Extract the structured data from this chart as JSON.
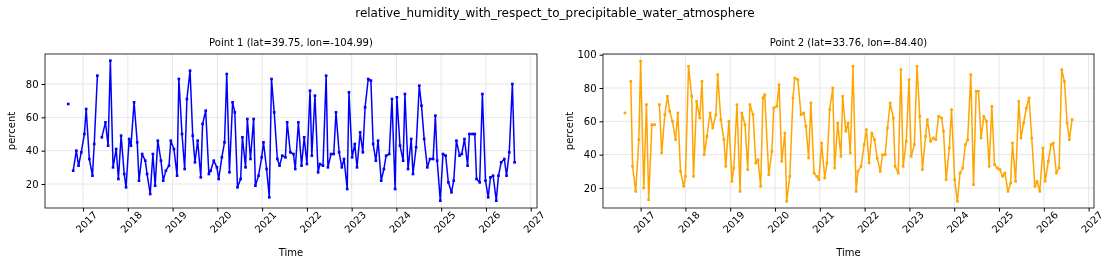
{
  "chart_data": [
    {
      "type": "line",
      "title": "Point 1 (lat=39.75, lon=-104.99)",
      "xlabel": "Time",
      "ylabel": "percent",
      "annotations": [
        "relative_humidity_with_respect_to_precipitable_water_atmosphere"
      ],
      "xlim": [
        2016.15,
        2027.14
      ],
      "xticks": [
        2017,
        2018,
        2019,
        2020,
        2021,
        2022,
        2023,
        2024,
        2025,
        2026,
        2027
      ],
      "ylim": [
        5.6,
        98
      ],
      "yticks": [
        20,
        40,
        60,
        80
      ],
      "grid": true,
      "marker": "square",
      "line_style": "solid",
      "series": [
        {
          "color": "#0000ff",
          "x": [
            2016.67,
            2016.73,
            2016.78,
            2016.85,
            2016.9,
            2016.96,
            2017.03,
            2017.07,
            2017.14,
            2017.21,
            2017.25,
            2017.32,
            2017.37,
            2017.42,
            2017.5,
            2017.56,
            2017.61,
            2017.67,
            2017.74,
            2017.79,
            2017.85,
            2017.92,
            2017.96,
            2018.03,
            2018.07,
            2018.14,
            2018.21,
            2018.25,
            2018.32,
            2018.39,
            2018.43,
            2018.5,
            2018.56,
            2018.61,
            2018.67,
            2018.74,
            2018.79,
            2018.85,
            2018.92,
            2018.96,
            2019.03,
            2019.1,
            2019.14,
            2019.21,
            2019.27,
            2019.32,
            2019.39,
            2019.45,
            2019.5,
            2019.56,
            2019.63,
            2019.67,
            2019.74,
            2019.81,
            2019.85,
            2019.92,
            2019.99,
            2020.03,
            2020.1,
            2020.16,
            2020.21,
            2020.27,
            2020.34,
            2020.39,
            2020.45,
            2020.52,
            2020.56,
            2020.63,
            2020.67,
            2020.74,
            2020.81,
            2020.85,
            2020.92,
            2020.99,
            2021.03,
            2021.1,
            2021.16,
            2021.21,
            2021.27,
            2021.34,
            2021.39,
            2021.45,
            2021.52,
            2021.56,
            2021.63,
            2021.7,
            2021.74,
            2021.81,
            2021.88,
            2021.94,
            2022.0,
            2022.07,
            2022.11,
            2022.18,
            2022.25,
            2022.29,
            2022.36,
            2022.43,
            2022.47,
            2022.54,
            2022.6,
            2022.65,
            2022.72,
            2022.78,
            2022.83,
            2022.9,
            2022.94,
            2023.01,
            2023.07,
            2023.12,
            2023.19,
            2023.25,
            2023.3,
            2023.37,
            2023.43,
            2023.48,
            2023.54,
            2023.59,
            2023.66,
            2023.72,
            2023.77,
            2023.84,
            2023.9,
            2023.97,
            2024.01,
            2024.08,
            2024.15,
            2024.19,
            2024.26,
            2024.33,
            2024.37,
            2024.44,
            2024.51,
            2024.56,
            2024.62,
            2024.69,
            2024.75,
            2024.82,
            2024.87,
            2024.91,
            2024.98,
            2025.04,
            2025.1,
            2025.16,
            2025.23,
            2025.28,
            2025.34,
            2025.41,
            2025.46,
            2025.52,
            2025.59,
            2025.63,
            2025.7,
            2025.75,
            2025.79,
            2025.86,
            2025.92,
            2025.99,
            2026.05,
            2026.1,
            2026.16,
            2026.23,
            2026.28,
            2026.34,
            2026.41,
            2026.46,
            2026.52,
            2026.59,
            2026.64
          ],
          "values": [
            68,
            null,
            28,
            40,
            31,
            39,
            50,
            65,
            35,
            25,
            44,
            85,
            null,
            48,
            57,
            43,
            94,
            30,
            41,
            23,
            49,
            26,
            18,
            47,
            43,
            69,
            45,
            22,
            38,
            34,
            26,
            14,
            38,
            19,
            46,
            34,
            22,
            28,
            31,
            46,
            41,
            25,
            83,
            50,
            29,
            71,
            88,
            49,
            33,
            46,
            24,
            56,
            64,
            26,
            28,
            34,
            30,
            23,
            36,
            45,
            86,
            27,
            69,
            63,
            18,
            23,
            48,
            30,
            59,
            35,
            59,
            19,
            25,
            36,
            45,
            29,
            12,
            83,
            63,
            35,
            31,
            37,
            36,
            57,
            39,
            38,
            29,
            57,
            31,
            48,
            32,
            76,
            37,
            73,
            27,
            32,
            31,
            85,
            30,
            38,
            38,
            63,
            39,
            30,
            35,
            17,
            75,
            36,
            44,
            30,
            51,
            39,
            66,
            83,
            82,
            44,
            34,
            46,
            22,
            29,
            37,
            38,
            71,
            17,
            72,
            43,
            34,
            74,
            29,
            47,
            26,
            42,
            79,
            67,
            47,
            30,
            35,
            35,
            61,
            34,
            10,
            38,
            37,
            21,
            15,
            22,
            46,
            37,
            38,
            47,
            31,
            50,
            50,
            50,
            23,
            21,
            74,
            22,
            12,
            24,
            25,
            10,
            25,
            33,
            35,
            25,
            39,
            80,
            33
          ]
        }
      ]
    },
    {
      "type": "line",
      "title": "Point 2 (lat=33.76, lon=-84.40)",
      "xlabel": "Time",
      "ylabel": "percent",
      "xlim": [
        2016.16,
        2027.12
      ],
      "xticks": [
        2017,
        2018,
        2019,
        2020,
        2021,
        2022,
        2023,
        2024,
        2025,
        2026,
        2027
      ],
      "ylim": [
        8,
        100.4
      ],
      "yticks": [
        20,
        40,
        60,
        80,
        100
      ],
      "grid": true,
      "marker": "square",
      "line_style": "solid",
      "series": [
        {
          "color": "#ffa500",
          "x": [
            2016.65,
            2016.72,
            2016.78,
            2016.82,
            2016.89,
            2016.96,
            2017.0,
            2017.07,
            2017.13,
            2017.18,
            2017.25,
            2017.31,
            2017.37,
            2017.42,
            2017.47,
            2017.54,
            2017.6,
            2017.65,
            2017.71,
            2017.78,
            2017.83,
            2017.89,
            2017.96,
            2018.0,
            2018.07,
            2018.14,
            2018.18,
            2018.25,
            2018.32,
            2018.37,
            2018.42,
            2018.48,
            2018.55,
            2018.61,
            2018.68,
            2018.72,
            2018.79,
            2018.86,
            2018.9,
            2018.97,
            2019.04,
            2019.08,
            2019.15,
            2019.22,
            2019.26,
            2019.33,
            2019.39,
            2019.44,
            2019.51,
            2019.57,
            2019.62,
            2019.68,
            2019.73,
            2019.77,
            2019.86,
            2019.93,
            2019.97,
            2020.04,
            2020.09,
            2020.15,
            2020.22,
            2020.26,
            2020.33,
            2020.4,
            2020.44,
            2020.51,
            2020.58,
            2020.64,
            2020.69,
            2020.75,
            2020.8,
            2020.87,
            2020.93,
            2020.98,
            2021.04,
            2021.11,
            2021.16,
            2021.22,
            2021.29,
            2021.33,
            2021.4,
            2021.47,
            2021.51,
            2021.58,
            2021.63,
            2021.68,
            2021.74,
            2021.81,
            2021.85,
            2021.92,
            2021.99,
            2022.04,
            2022.1,
            2022.16,
            2022.22,
            2022.28,
            2022.35,
            2022.4,
            2022.46,
            2022.51,
            2022.57,
            2022.64,
            2022.68,
            2022.75,
            2022.81,
            2022.86,
            2022.93,
            2022.99,
            2023.04,
            2023.11,
            2023.17,
            2023.23,
            2023.29,
            2023.36,
            2023.4,
            2023.47,
            2023.53,
            2023.59,
            2023.65,
            2023.72,
            2023.76,
            2023.82,
            2023.89,
            2023.94,
            2024.01,
            2024.07,
            2024.13,
            2024.19,
            2024.25,
            2024.3,
            2024.37,
            2024.43,
            2024.49,
            2024.54,
            2024.6,
            2024.66,
            2024.72,
            2024.78,
            2024.84,
            2024.9,
            2024.96,
            2025.02,
            2025.08,
            2025.13,
            2025.2,
            2025.26,
            2025.3,
            2025.37,
            2025.44,
            2025.49,
            2025.55,
            2025.61,
            2025.67,
            2025.73,
            2025.8,
            2025.85,
            2025.91,
            2025.98,
            2026.03,
            2026.1,
            2026.16,
            2026.21,
            2026.28,
            2026.34,
            2026.4,
            2026.46,
            2026.52,
            2026.57,
            2026.63
          ],
          "values": [
            65,
            null,
            84,
            33,
            18,
            49,
            96,
            20,
            70,
            13,
            58,
            58,
            null,
            70,
            41,
            64,
            75,
            66,
            60,
            49,
            65,
            30,
            21,
            27,
            93,
            75,
            27,
            72,
            62,
            84,
            40,
            51,
            65,
            56,
            64,
            88,
            61,
            49,
            33,
            60,
            24,
            32,
            70,
            18,
            65,
            58,
            31,
            70,
            64,
            35,
            37,
            21,
            74,
            76,
            28,
            42,
            68,
            69,
            82,
            36,
            53,
            12,
            27,
            74,
            86,
            85,
            64,
            65,
            57,
            38,
            71,
            29,
            27,
            25,
            47,
            26,
            35,
            67,
            80,
            32,
            59,
            39,
            75,
            54,
            59,
            41,
            93,
            18,
            30,
            33,
            46,
            55,
            35,
            53,
            49,
            38,
            30,
            40,
            40,
            56,
            71,
            62,
            33,
            29,
            91,
            33,
            48,
            85,
            39,
            46,
            93,
            63,
            31,
            51,
            61,
            48,
            50,
            49,
            63,
            62,
            54,
            25,
            44,
            67,
            25,
            12,
            29,
            32,
            46,
            49,
            88,
            22,
            78,
            78,
            50,
            63,
            60,
            33,
            69,
            34,
            32,
            31,
            27,
            29,
            18,
            23,
            47,
            24,
            72,
            50,
            59,
            68,
            74,
            50,
            21,
            24,
            18,
            44,
            24,
            36,
            46,
            47,
            29,
            32,
            91,
            84,
            59,
            49,
            61
          ]
        }
      ]
    }
  ]
}
